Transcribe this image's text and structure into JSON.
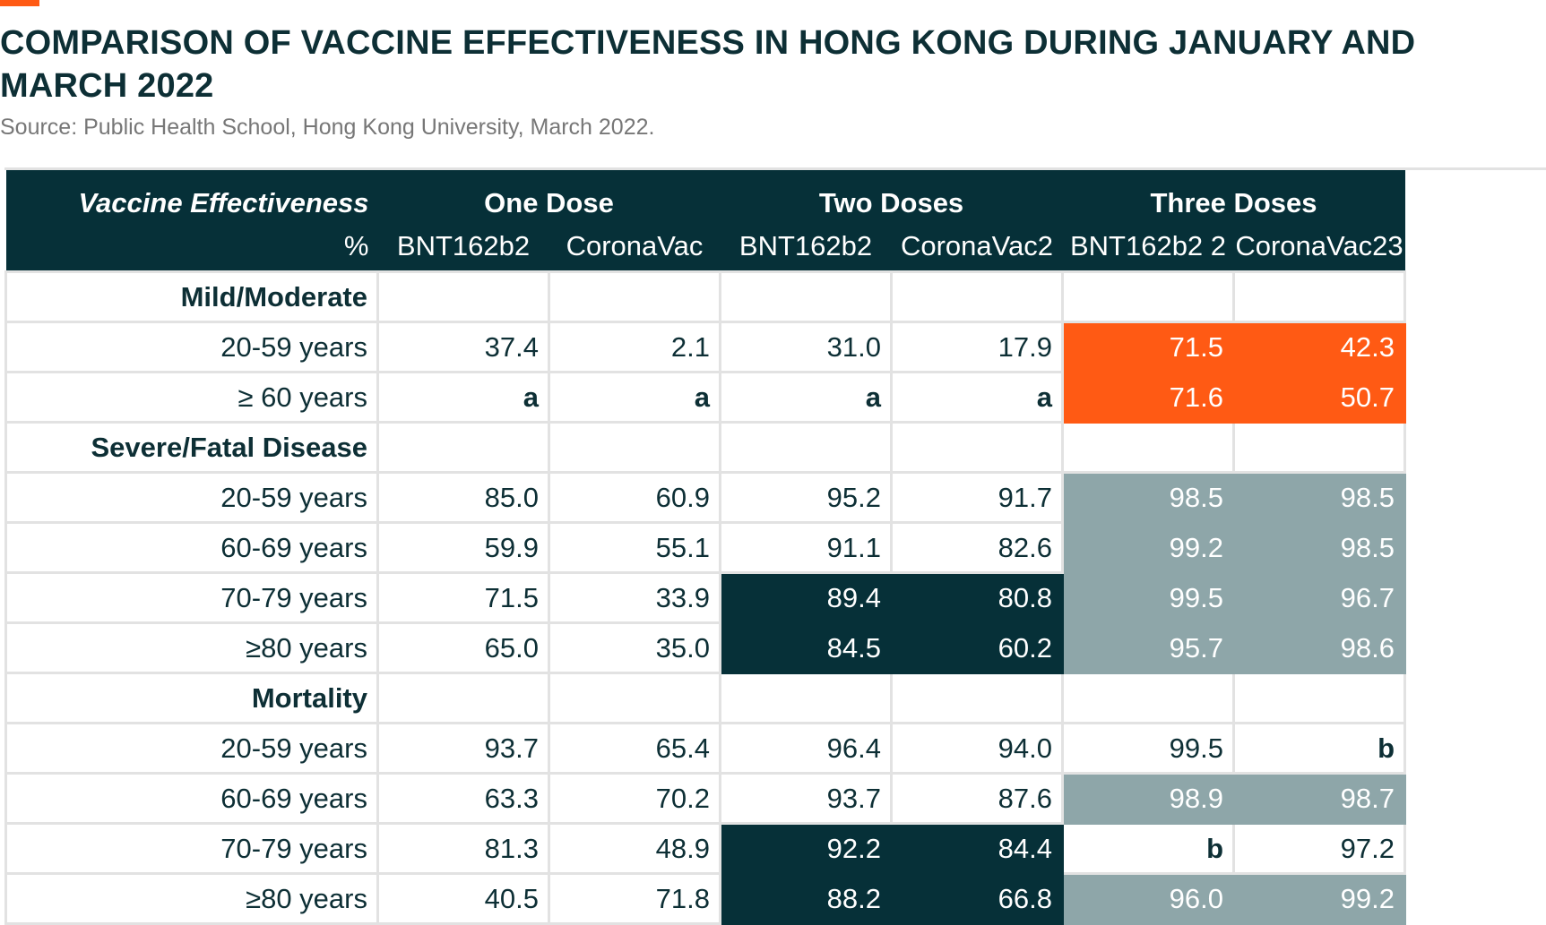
{
  "title": "COMPARISON OF VACCINE EFFECTIVENESS IN HONG KONG DURING JANUARY AND MARCH 2022",
  "source": "Source: Public Health School, Hong Kong University, March 2022.",
  "colors": {
    "accent": "#ff5a14",
    "dark": "#063038",
    "grey": "#8ea6a9",
    "text": "#0d2f35"
  },
  "chart_data": {
    "type": "table",
    "header": {
      "corner_top": "Vaccine Effectiveness",
      "corner_sub": "%",
      "groups": [
        "One Dose",
        "Two Doses",
        "Three Doses"
      ],
      "columns": [
        "BNT162b2",
        "CoronaVac",
        "BNT162b2",
        "CoronaVac2",
        "BNT162b2 2",
        "CoronaVac23"
      ]
    },
    "rows": [
      {
        "type": "section",
        "label": "Mild/Moderate"
      },
      {
        "type": "data",
        "label": "20-59 years",
        "values": [
          "37.4",
          "2.1",
          "31.0",
          "17.9",
          "71.5",
          "42.3"
        ],
        "highlight": [
          "",
          "",
          "",
          "",
          "orange",
          "orange"
        ]
      },
      {
        "type": "data",
        "label": "≥ 60 years",
        "values": [
          "a",
          "a",
          "a",
          "a",
          "71.6",
          "50.7"
        ],
        "highlight": [
          "",
          "",
          "",
          "",
          "orange",
          "orange"
        ]
      },
      {
        "type": "section",
        "label": "Severe/Fatal Disease"
      },
      {
        "type": "data",
        "label": "20-59 years",
        "values": [
          "85.0",
          "60.9",
          "95.2",
          "91.7",
          "98.5",
          "98.5"
        ],
        "highlight": [
          "",
          "",
          "",
          "",
          "grey",
          "grey"
        ]
      },
      {
        "type": "data",
        "label": "60-69 years",
        "values": [
          "59.9",
          "55.1",
          "91.1",
          "82.6",
          "99.2",
          "98.5"
        ],
        "highlight": [
          "",
          "",
          "",
          "",
          "grey",
          "grey"
        ]
      },
      {
        "type": "data",
        "label": "70-79 years",
        "values": [
          "71.5",
          "33.9",
          "89.4",
          "80.8",
          "99.5",
          "96.7"
        ],
        "highlight": [
          "",
          "",
          "dark",
          "dark",
          "grey",
          "grey"
        ]
      },
      {
        "type": "data",
        "label": "≥80 years",
        "values": [
          "65.0",
          "35.0",
          "84.5",
          "60.2",
          "95.7",
          "98.6"
        ],
        "highlight": [
          "",
          "",
          "dark",
          "dark",
          "grey",
          "grey"
        ]
      },
      {
        "type": "section",
        "label": "Mortality"
      },
      {
        "type": "data",
        "label": "20-59 years",
        "values": [
          "93.7",
          "65.4",
          "96.4",
          "94.0",
          "99.5",
          "b"
        ],
        "highlight": [
          "",
          "",
          "",
          "",
          "",
          ""
        ]
      },
      {
        "type": "data",
        "label": "60-69 years",
        "values": [
          "63.3",
          "70.2",
          "93.7",
          "87.6",
          "98.9",
          "98.7"
        ],
        "highlight": [
          "",
          "",
          "",
          "",
          "grey",
          "grey"
        ]
      },
      {
        "type": "data",
        "label": "70-79 years",
        "values": [
          "81.3",
          "48.9",
          "92.2",
          "84.4",
          "b",
          "97.2"
        ],
        "highlight": [
          "",
          "",
          "dark",
          "dark",
          "",
          ""
        ]
      },
      {
        "type": "data",
        "label": "≥80 years",
        "values": [
          "40.5",
          "71.8",
          "88.2",
          "66.8",
          "96.0",
          "99.2"
        ],
        "highlight": [
          "",
          "",
          "dark",
          "dark",
          "grey",
          "grey"
        ]
      }
    ]
  }
}
